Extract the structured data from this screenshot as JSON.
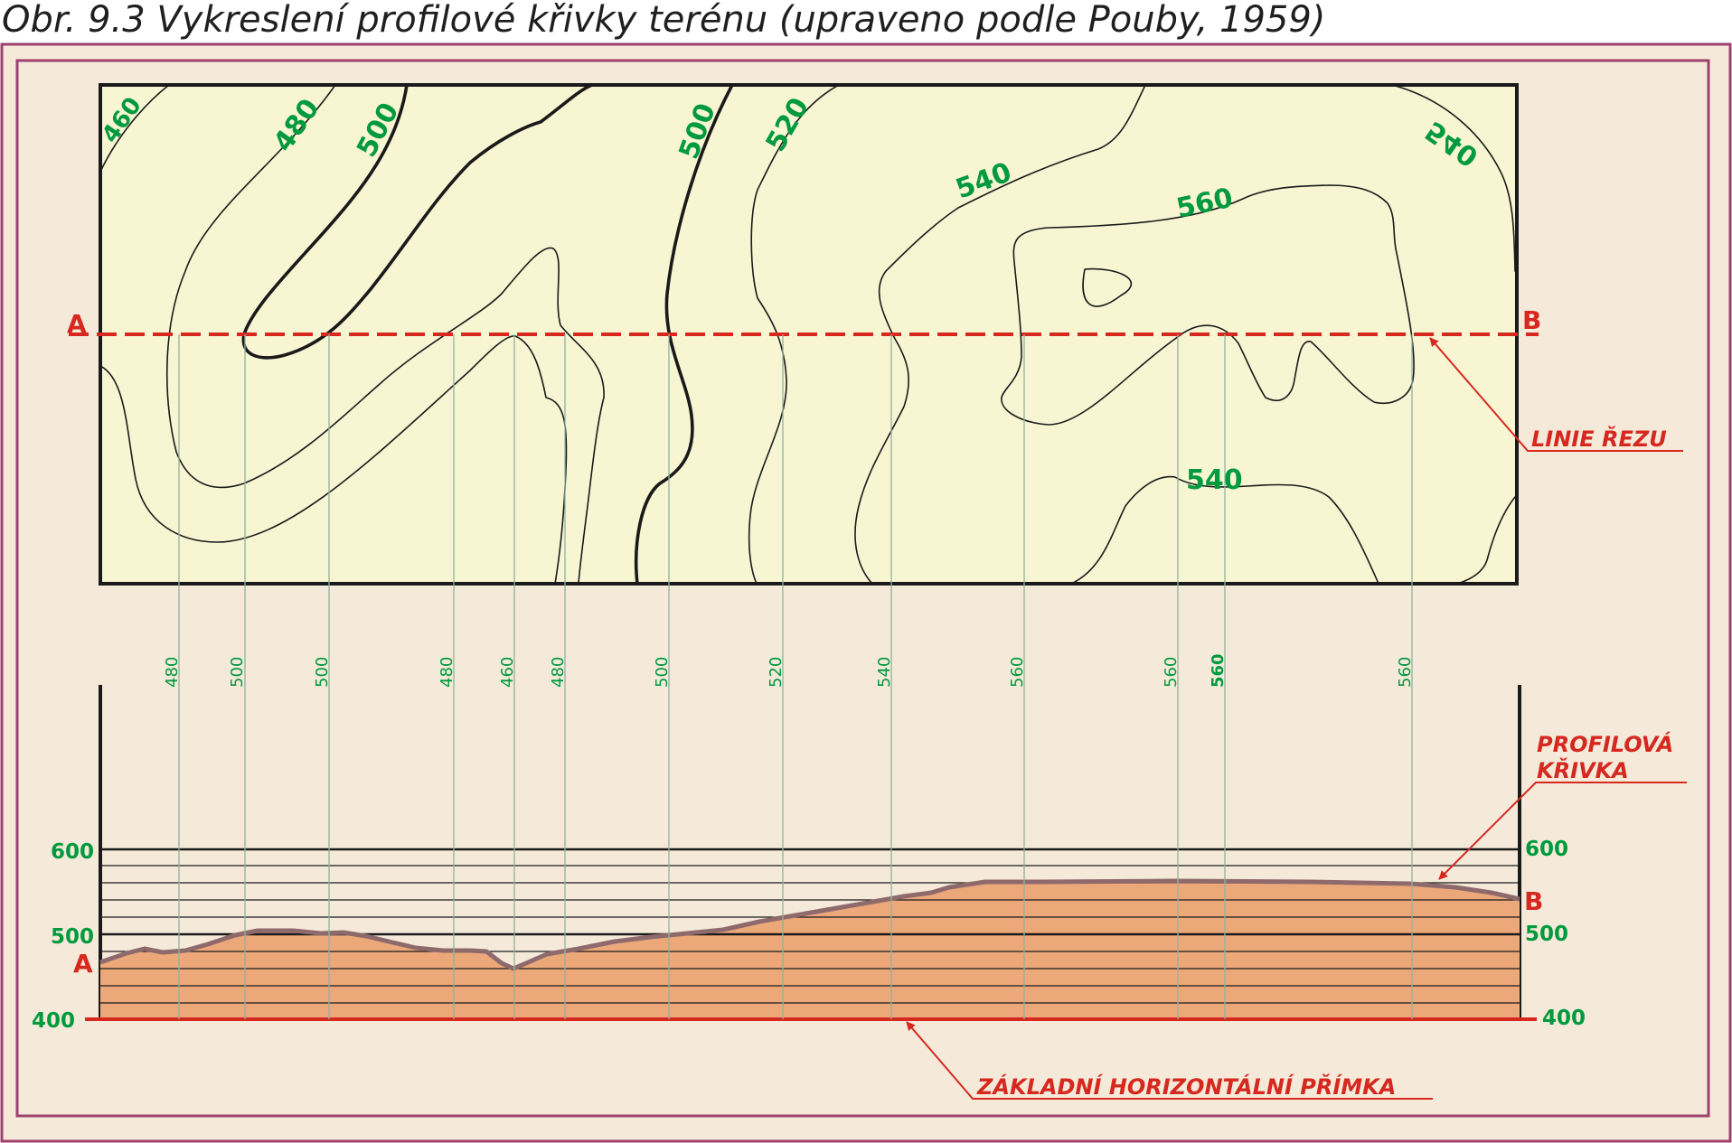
{
  "caption": "Obr. 9.3  Vykreslení profilové křivky terénu (upraveno podle Pouby, 1959)",
  "map": {
    "contour_labels": [
      "460",
      "480",
      "500",
      "500",
      "520",
      "540",
      "560",
      "540",
      "540"
    ],
    "point_a": "A",
    "point_b": "B",
    "section_line_label": "LINIE ŘEZU"
  },
  "crossings": [
    "480",
    "500",
    "500",
    "480",
    "460",
    "480",
    "500",
    "520",
    "540",
    "560",
    "560",
    "560",
    "560"
  ],
  "profile": {
    "left_axis_labels": [
      "600",
      "500",
      "400"
    ],
    "right_axis_labels": [
      "600",
      "500",
      "400"
    ],
    "point_a": "A",
    "point_b": "B",
    "curve_label_line1": "PROFILOVÁ",
    "curve_label_line2": "KŘIVKA",
    "baseline_label": "ZÁKLADNÍ HORIZONTÁLNÍ PŘÍMKA"
  },
  "colors": {
    "frame": "#a0406e",
    "background": "#f5ead9",
    "map_fill": "#f8f5d3",
    "contour_label": "#009a3e",
    "annotation": "#d6281f",
    "terrain_fill": "#eda87a",
    "terrain_edge": "#8e6a6c"
  }
}
